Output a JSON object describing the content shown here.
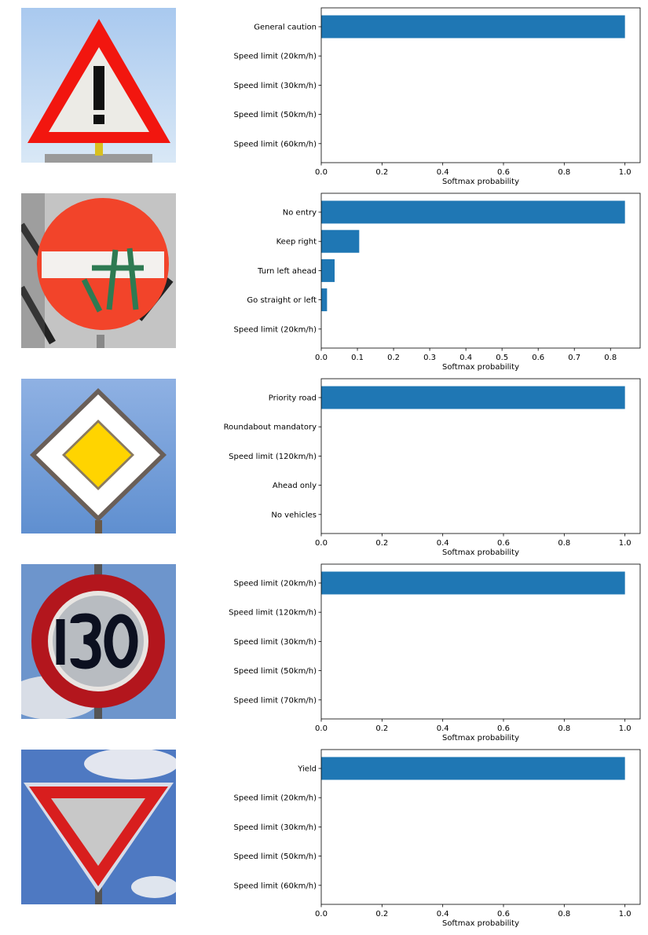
{
  "colors": {
    "bar": "#1f77b4",
    "axis": "#000000"
  },
  "chart_data": [
    {
      "type": "bar",
      "orientation": "horizontal",
      "image": "general-caution-sign",
      "categories": [
        "General caution",
        "Speed limit (20km/h)",
        "Speed limit (30km/h)",
        "Speed limit (50km/h)",
        "Speed limit (60km/h)"
      ],
      "values": [
        1.0,
        0.0,
        0.0,
        0.0,
        0.0
      ],
      "xlabel": "Softmax probability",
      "xlim": [
        0,
        1.05
      ],
      "xticks": [
        "0.0",
        "0.2",
        "0.4",
        "0.6",
        "0.8",
        "1.0"
      ],
      "grid": false
    },
    {
      "type": "bar",
      "orientation": "horizontal",
      "image": "no-entry-sign",
      "categories": [
        "No entry",
        "Keep right",
        "Turn left ahead",
        "Go straight or left",
        "Speed limit (20km/h)"
      ],
      "values": [
        0.84,
        0.105,
        0.037,
        0.016,
        0.0
      ],
      "xlabel": "Softmax probability",
      "xlim": [
        0,
        0.882
      ],
      "xticks": [
        "0.0",
        "0.1",
        "0.2",
        "0.3",
        "0.4",
        "0.5",
        "0.6",
        "0.7",
        "0.8"
      ],
      "grid": false
    },
    {
      "type": "bar",
      "orientation": "horizontal",
      "image": "priority-road-sign",
      "categories": [
        "Priority road",
        "Roundabout mandatory",
        "Speed limit (120km/h)",
        "Ahead only",
        "No vehicles"
      ],
      "values": [
        1.0,
        0.0,
        0.0,
        0.0,
        0.0
      ],
      "xlabel": "Softmax probability",
      "xlim": [
        0,
        1.05
      ],
      "xticks": [
        "0.0",
        "0.2",
        "0.4",
        "0.6",
        "0.8",
        "1.0"
      ],
      "grid": false
    },
    {
      "type": "bar",
      "orientation": "horizontal",
      "image": "speed-limit-130-sign",
      "categories": [
        "Speed limit (20km/h)",
        "Speed limit (120km/h)",
        "Speed limit (30km/h)",
        "Speed limit (50km/h)",
        "Speed limit (70km/h)"
      ],
      "values": [
        1.0,
        0.0,
        0.0,
        0.0,
        0.0
      ],
      "xlabel": "Softmax probability",
      "xlim": [
        0,
        1.05
      ],
      "xticks": [
        "0.0",
        "0.2",
        "0.4",
        "0.6",
        "0.8",
        "1.0"
      ],
      "grid": false
    },
    {
      "type": "bar",
      "orientation": "horizontal",
      "image": "yield-sign",
      "categories": [
        "Yield",
        "Speed limit (20km/h)",
        "Speed limit (30km/h)",
        "Speed limit (50km/h)",
        "Speed limit (60km/h)"
      ],
      "values": [
        1.0,
        0.0,
        0.0,
        0.0,
        0.0
      ],
      "xlabel": "Softmax probability",
      "xlim": [
        0,
        1.05
      ],
      "xticks": [
        "0.0",
        "0.2",
        "0.4",
        "0.6",
        "0.8",
        "1.0"
      ],
      "grid": false
    }
  ]
}
